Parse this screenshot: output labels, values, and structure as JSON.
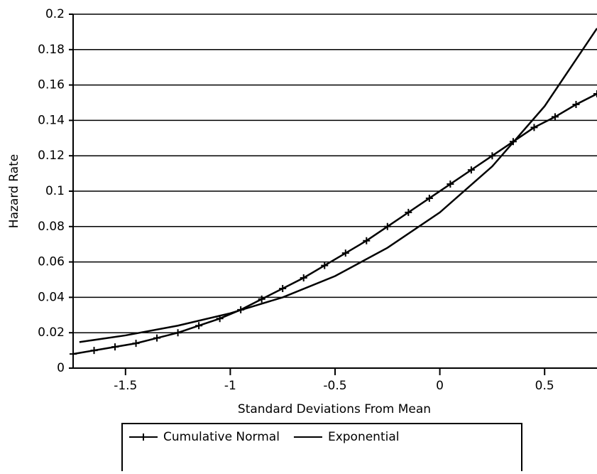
{
  "chart_data": {
    "type": "line",
    "xlabel": "Standard Deviations From Mean",
    "ylabel": "Hazard Rate",
    "xlim": [
      -1.75,
      0.75
    ],
    "xticks": [
      -1.5,
      -1,
      -0.5,
      0,
      0.5
    ],
    "ylim": [
      0,
      0.2
    ],
    "yticks": [
      0,
      0.02,
      0.04,
      0.06,
      0.08,
      0.1,
      0.12,
      0.14,
      0.16,
      0.18,
      0.2
    ],
    "grid": true,
    "legend": "bottom",
    "series": [
      {
        "name": "Cumulative Normal",
        "color": "#000000",
        "marker": "plus",
        "x": [
          -1.75,
          -1.65,
          -1.55,
          -1.45,
          -1.35,
          -1.25,
          -1.15,
          -1.05,
          -0.95,
          -0.85,
          -0.75,
          -0.65,
          -0.55,
          -0.45,
          -0.35,
          -0.25,
          -0.15,
          -0.05,
          0.05,
          0.15,
          0.25,
          0.35,
          0.45,
          0.55,
          0.65,
          0.75
        ],
        "values": [
          0.008,
          0.01,
          0.012,
          0.014,
          0.017,
          0.02,
          0.024,
          0.028,
          0.033,
          0.039,
          0.045,
          0.051,
          0.058,
          0.065,
          0.072,
          0.08,
          0.088,
          0.096,
          0.104,
          0.112,
          0.12,
          0.128,
          0.136,
          0.142,
          0.149,
          0.155
        ]
      },
      {
        "name": "Exponential",
        "color": "#000000",
        "x": [
          -1.72,
          -1.5,
          -1.25,
          -1,
          -0.75,
          -0.5,
          -0.25,
          0,
          0.25,
          0.5,
          0.75
        ],
        "values": [
          0.0147,
          0.0185,
          0.024,
          0.031,
          0.04,
          0.052,
          0.068,
          0.088,
          0.114,
          0.148,
          0.192
        ]
      }
    ]
  }
}
